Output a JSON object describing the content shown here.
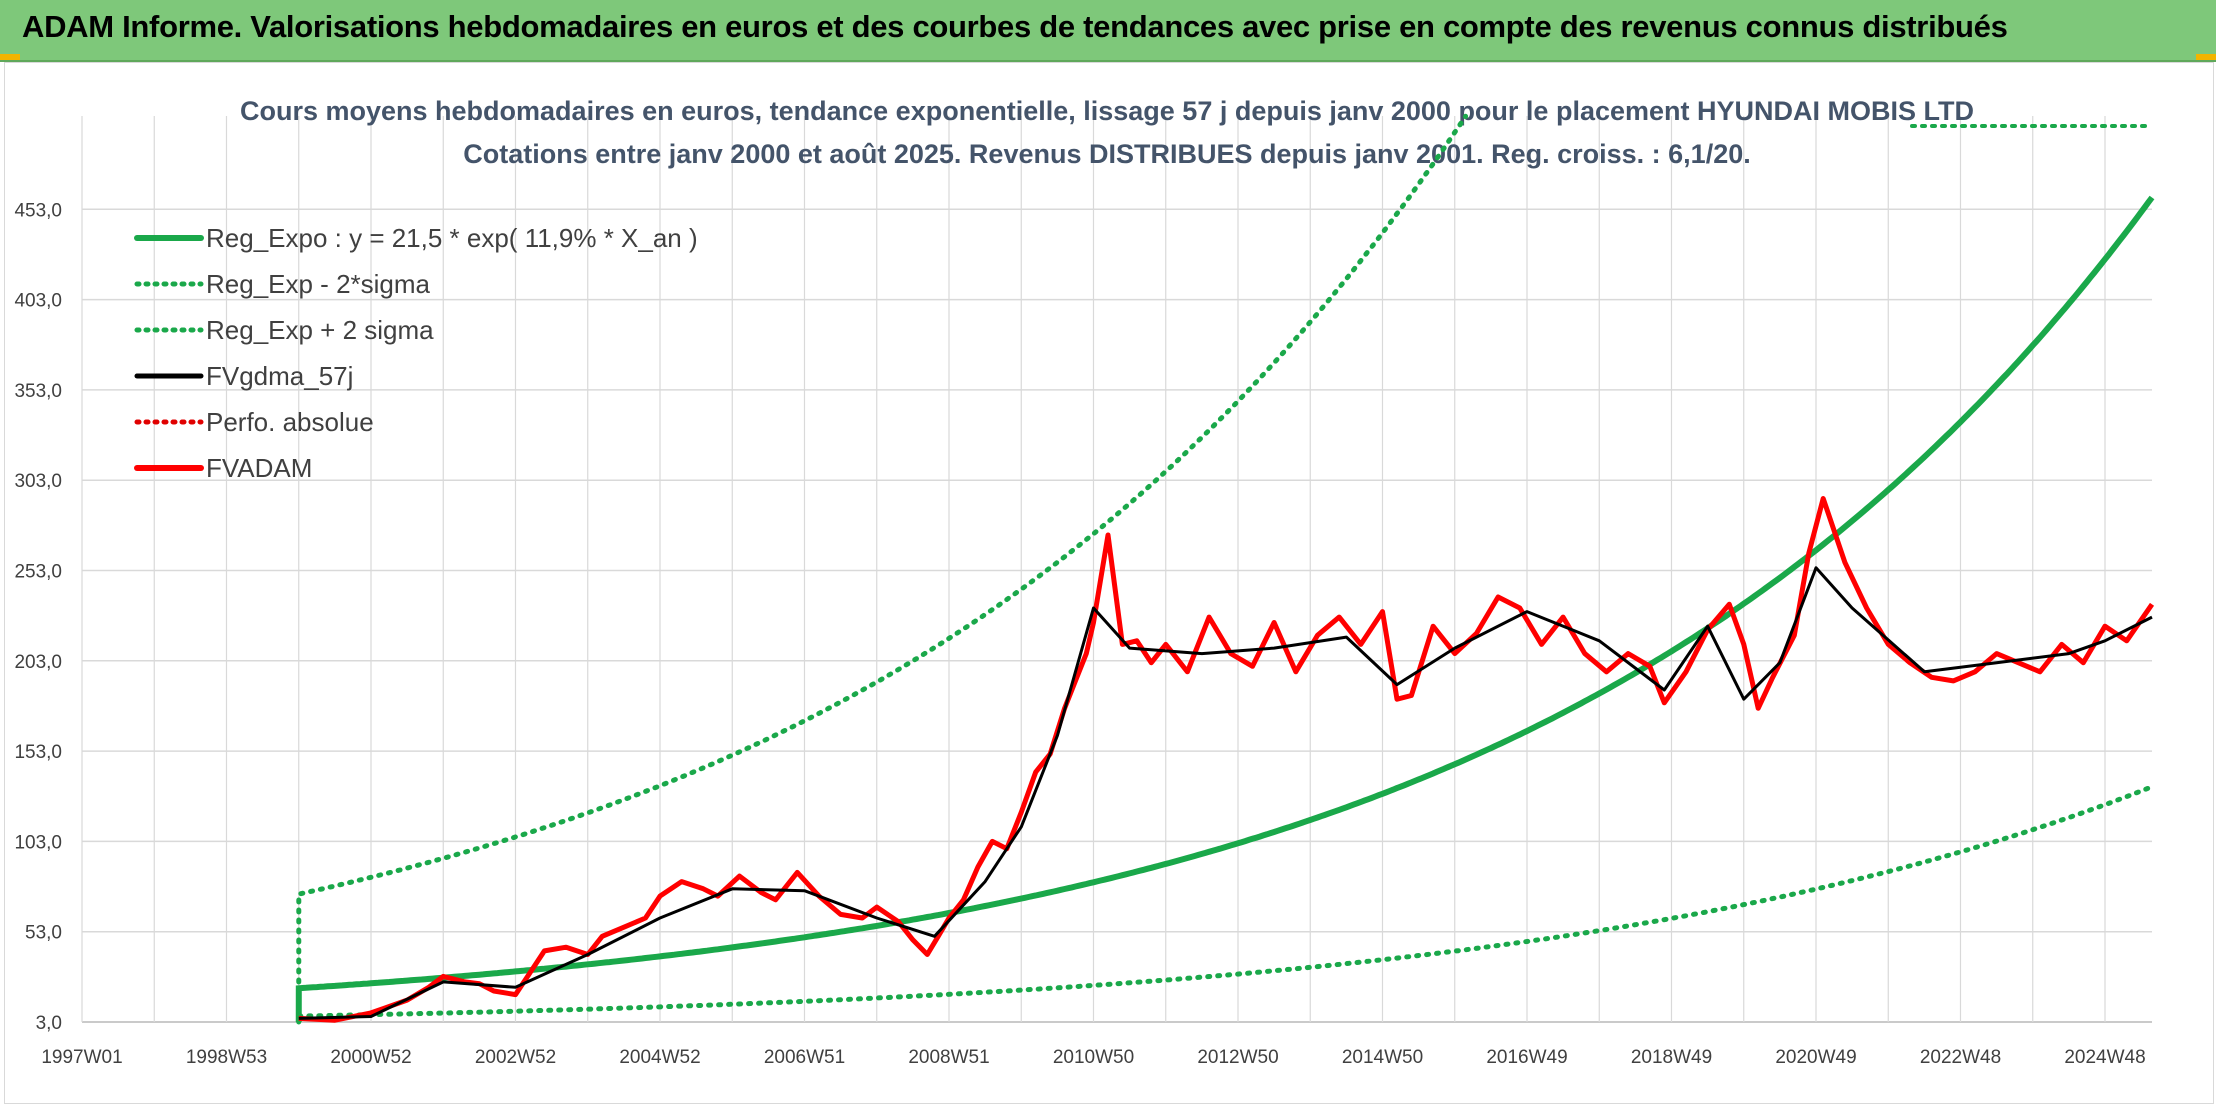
{
  "banner": {
    "title": "ADAM Informe. Valorisations hebdomadaires en euros et des courbes de tendances avec prise en compte des revenus connus distribués"
  },
  "colors": {
    "banner_bg": "#7ec87a",
    "reg_expo": "#1aa84a",
    "sigma": "#1aa84a",
    "fvgdma": "#000000",
    "perfo": "#e00000",
    "fvadam": "#ff0000",
    "grid": "#d9d9d9"
  },
  "chart_data": {
    "type": "line",
    "title": "Cours moyens hebdomadaires en euros, tendance exponentielle, lissage 57 j depuis janv 2000 pour le placement HYUNDAI MOBIS LTD",
    "subtitle": "Cotations entre janv 2000 et août 2025. Revenus DISTRIBUES depuis janv 2001. Reg. croiss. : 6,1/20.",
    "xlabel": "",
    "ylabel": "",
    "x_range": [
      "1997W01",
      "2025W34"
    ],
    "x_tick_labels": [
      "1997W01",
      "1998W53",
      "2000W52",
      "2002W52",
      "2004W52",
      "2006W51",
      "2008W51",
      "2010W50",
      "2012W50",
      "2014W50",
      "2016W49",
      "2018W49",
      "2020W49",
      "2022W48",
      "2024W48"
    ],
    "y_tick_labels": [
      "3,0",
      "53,0",
      "103,0",
      "153,0",
      "203,0",
      "253,0",
      "303,0",
      "353,0",
      "403,0",
      "453,0"
    ],
    "ylim": [
      3,
      503
    ],
    "grid": true,
    "legend_position": "top-left",
    "legend": [
      {
        "label": "Reg_Expo : y = 21,5 * exp( 11,9% *  X_an )",
        "style": "solid-thick",
        "color": "#1aa84a"
      },
      {
        "label": "Reg_Exp - 2*sigma",
        "style": "dotted",
        "color": "#1aa84a"
      },
      {
        "label": "Reg_Exp + 2 sigma",
        "style": "dotted",
        "color": "#1aa84a"
      },
      {
        "label": "FVgdma_57j",
        "style": "solid",
        "color": "#000000"
      },
      {
        "label": "Perfo. absolue",
        "style": "dotted",
        "color": "#e00000"
      },
      {
        "label": "FVADAM",
        "style": "solid-thick",
        "color": "#ff0000"
      }
    ],
    "regression": {
      "a": 21.5,
      "b": 0.119,
      "start_year": 2000.0,
      "end_year": 2025.65
    },
    "sigma_bands": {
      "upper_factor": 3.4,
      "lower_factor": 0.29
    },
    "series": [
      {
        "name": "FVADAM",
        "x": [
          2000.0,
          2000.5,
          2001.0,
          2001.5,
          2001.8,
          2002.0,
          2002.3,
          2002.5,
          2002.7,
          2003.0,
          2003.2,
          2003.4,
          2003.7,
          2004.0,
          2004.2,
          2004.5,
          2004.8,
          2005.0,
          2005.3,
          2005.6,
          2005.8,
          2006.1,
          2006.4,
          2006.6,
          2006.9,
          2007.2,
          2007.5,
          2007.8,
          2008.0,
          2008.3,
          2008.5,
          2008.7,
          2008.85,
          2009.0,
          2009.2,
          2009.4,
          2009.6,
          2009.8,
          2010.0,
          2010.2,
          2010.4,
          2010.6,
          2010.75,
          2010.9,
          2011.0,
          2011.2,
          2011.4,
          2011.6,
          2011.8,
          2012.0,
          2012.3,
          2012.6,
          2012.9,
          2013.2,
          2013.5,
          2013.8,
          2014.1,
          2014.4,
          2014.7,
          2015.0,
          2015.2,
          2015.4,
          2015.7,
          2016.0,
          2016.3,
          2016.6,
          2016.9,
          2017.2,
          2017.5,
          2017.8,
          2018.1,
          2018.4,
          2018.7,
          2018.9,
          2019.2,
          2019.5,
          2019.8,
          2020.0,
          2020.2,
          2020.4,
          2020.7,
          2020.9,
          2021.1,
          2021.4,
          2021.7,
          2022.0,
          2022.3,
          2022.6,
          2022.9,
          2023.2,
          2023.5,
          2023.8,
          2024.1,
          2024.4,
          2024.7,
          2025.0,
          2025.3,
          2025.65
        ],
        "y": [
          5,
          4,
          8,
          15,
          22,
          28,
          25,
          24,
          20,
          18,
          30,
          42,
          44,
          40,
          50,
          55,
          60,
          72,
          80,
          76,
          72,
          83,
          74,
          70,
          85,
          72,
          62,
          60,
          66,
          58,
          48,
          40,
          50,
          60,
          70,
          88,
          102,
          98,
          118,
          140,
          150,
          175,
          190,
          205,
          222,
          270,
          210,
          212,
          200,
          210,
          195,
          225,
          205,
          198,
          222,
          195,
          215,
          225,
          210,
          228,
          180,
          182,
          220,
          205,
          216,
          236,
          230,
          210,
          225,
          205,
          195,
          205,
          198,
          178,
          195,
          218,
          232,
          210,
          175,
          192,
          215,
          260,
          290,
          255,
          230,
          210,
          200,
          192,
          190,
          195,
          205,
          200,
          195,
          210,
          200,
          220,
          212,
          232
        ]
      },
      {
        "name": "FVgdma_57j",
        "x": [
          2000.0,
          2001.0,
          2002.0,
          2003.0,
          2004.0,
          2005.0,
          2006.0,
          2007.0,
          2008.0,
          2008.8,
          2009.5,
          2010.0,
          2010.5,
          2011.0,
          2011.5,
          2012.5,
          2013.5,
          2014.5,
          2015.2,
          2016.0,
          2017.0,
          2018.0,
          2018.9,
          2019.5,
          2020.0,
          2020.5,
          2021.0,
          2021.5,
          2022.5,
          2023.5,
          2024.5,
          2025.0,
          2025.65
        ],
        "y": [
          5,
          6,
          25,
          22,
          40,
          60,
          76,
          75,
          60,
          50,
          80,
          110,
          160,
          230,
          208,
          205,
          208,
          214,
          188,
          208,
          228,
          212,
          185,
          220,
          180,
          200,
          252,
          230,
          195,
          200,
          205,
          212,
          225
        ]
      }
    ]
  }
}
